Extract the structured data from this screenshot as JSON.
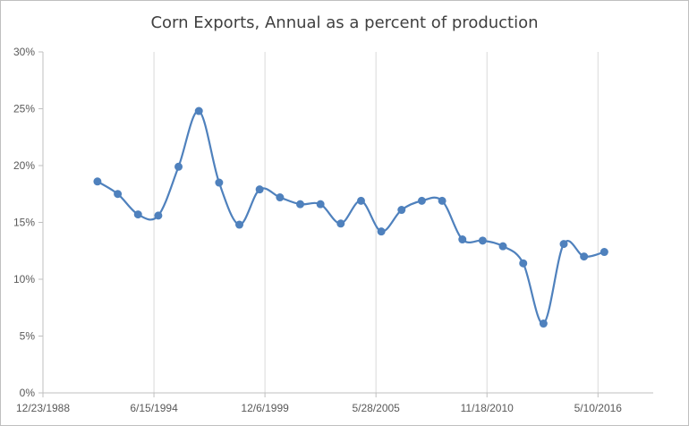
{
  "chart_data": {
    "type": "line",
    "title": "Corn Exports, Annual as a percent of production",
    "xlabel": "",
    "ylabel": "",
    "y_tick_labels": [
      "0%",
      "5%",
      "10%",
      "15%",
      "20%",
      "25%",
      "30%"
    ],
    "y_ticks": [
      0,
      5,
      10,
      15,
      20,
      25,
      30
    ],
    "ylim": [
      0,
      30
    ],
    "x_tick_labels": [
      "12/23/1988",
      "6/15/1994",
      "12/6/1999",
      "5/28/2005",
      "11/18/2010",
      "5/10/2016"
    ],
    "x_ticks": [
      "1988-12-23",
      "1994-06-15",
      "1999-12-06",
      "2005-05-28",
      "2010-11-18",
      "2016-05-10"
    ],
    "xlim": [
      "1988-12-23",
      "2019-01-30"
    ],
    "grid": "vertical",
    "smooth": true,
    "series_color": "#4f81bd",
    "series": [
      {
        "name": "",
        "x": [
          "1991-09-01",
          "1992-09-01",
          "1993-09-01",
          "1994-09-01",
          "1995-09-01",
          "1996-09-01",
          "1997-09-01",
          "1998-09-01",
          "1999-09-01",
          "2000-09-01",
          "2001-09-01",
          "2002-09-01",
          "2003-09-01",
          "2004-09-01",
          "2005-09-01",
          "2006-09-01",
          "2007-09-01",
          "2008-09-01",
          "2009-09-01",
          "2010-09-01",
          "2011-09-01",
          "2012-09-01",
          "2013-09-01",
          "2014-09-01",
          "2015-09-01",
          "2016-09-01"
        ],
        "values": [
          18.6,
          17.5,
          15.7,
          15.6,
          19.9,
          24.8,
          18.5,
          14.8,
          17.9,
          17.2,
          16.6,
          16.6,
          14.9,
          16.9,
          14.2,
          16.1,
          16.9,
          16.9,
          13.5,
          13.4,
          12.9,
          11.4,
          6.1,
          13.1,
          12.0,
          12.4
        ]
      }
    ]
  }
}
